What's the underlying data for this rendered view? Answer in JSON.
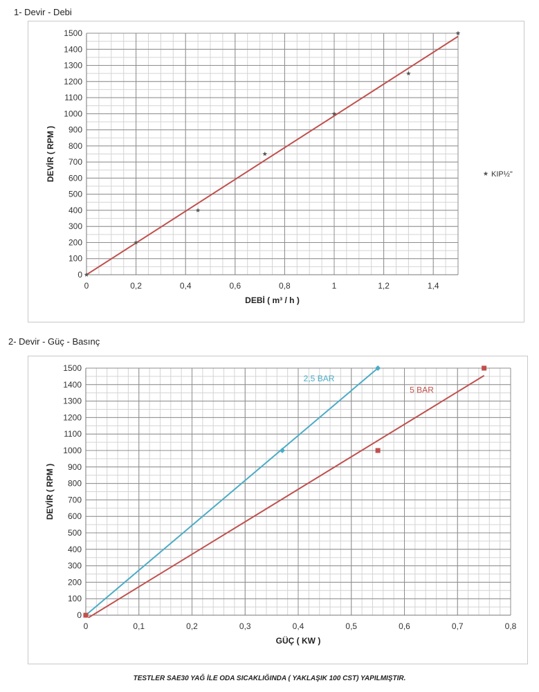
{
  "section1_title": "1- Devir - Debi",
  "section2_title": "2- Devir - Güç - Basınç",
  "footnote": "TESTLER SAE30 YAĞ İLE ODA SICAKLIĞINDA ( YAKLAŞIK 100 CST) YAPILMIŞTIR.",
  "chart_data": [
    {
      "type": "scatter",
      "xlabel": "DEBİ ( m³ / h )",
      "ylabel": "DEVİR ( RPM )",
      "xlim": [
        0,
        1.5
      ],
      "ylim": [
        0,
        1500
      ],
      "xticks": [
        "0",
        "0,2",
        "0,4",
        "0,6",
        "0,8",
        "1",
        "1,2",
        "1,4"
      ],
      "xtick_values": [
        0,
        0.2,
        0.4,
        0.6,
        0.8,
        1.0,
        1.2,
        1.4
      ],
      "yticks": [
        0,
        100,
        200,
        300,
        400,
        500,
        600,
        700,
        800,
        900,
        1000,
        1100,
        1200,
        1300,
        1400,
        1500
      ],
      "grid": true,
      "legend_position": "right",
      "series": [
        {
          "name": "KIP½\"",
          "color": "#555555",
          "marker": "star",
          "points": [
            {
              "x": 0,
              "y": 0
            },
            {
              "x": 0.2,
              "y": 200
            },
            {
              "x": 0.45,
              "y": 400
            },
            {
              "x": 0.72,
              "y": 750
            },
            {
              "x": 1.0,
              "y": 1000
            },
            {
              "x": 1.3,
              "y": 1250
            },
            {
              "x": 1.5,
              "y": 1500
            }
          ],
          "trendline": {
            "color": "#c0504d",
            "from": {
              "x": 0,
              "y": 0
            },
            "to": {
              "x": 1.5,
              "y": 1480
            }
          }
        }
      ]
    },
    {
      "type": "scatter",
      "xlabel": "GÜÇ ( KW )",
      "ylabel": "DEVİR ( RPM )",
      "xlim": [
        0,
        0.8
      ],
      "ylim": [
        0,
        1500
      ],
      "xticks": [
        "0",
        "0,1",
        "0,2",
        "0,3",
        "0,4",
        "0,5",
        "0,6",
        "0,7",
        "0,8"
      ],
      "xtick_values": [
        0,
        0.1,
        0.2,
        0.3,
        0.4,
        0.5,
        0.6,
        0.7,
        0.8
      ],
      "yticks": [
        0,
        100,
        200,
        300,
        400,
        500,
        600,
        700,
        800,
        900,
        1000,
        1100,
        1200,
        1300,
        1400,
        1500
      ],
      "grid": true,
      "series": [
        {
          "name": "2,5 BAR",
          "color": "#4bacc6",
          "marker": "diamond",
          "points": [
            {
              "x": 0,
              "y": 0
            },
            {
              "x": 0.37,
              "y": 1000
            },
            {
              "x": 0.55,
              "y": 1500
            }
          ],
          "trendline": {
            "color": "#4bacc6",
            "from": {
              "x": 0,
              "y": 0
            },
            "to": {
              "x": 0.55,
              "y": 1500
            }
          },
          "label_at": {
            "x": 0.41,
            "y": 1420
          }
        },
        {
          "name": "5 BAR",
          "color": "#c0504d",
          "marker": "square",
          "points": [
            {
              "x": 0,
              "y": 0
            },
            {
              "x": 0.55,
              "y": 1000
            },
            {
              "x": 0.75,
              "y": 1500
            }
          ],
          "trendline": {
            "color": "#c0504d",
            "from": {
              "x": 0.005,
              "y": -15
            },
            "to": {
              "x": 0.75,
              "y": 1455
            }
          },
          "label_at": {
            "x": 0.61,
            "y": 1350
          }
        }
      ]
    }
  ]
}
